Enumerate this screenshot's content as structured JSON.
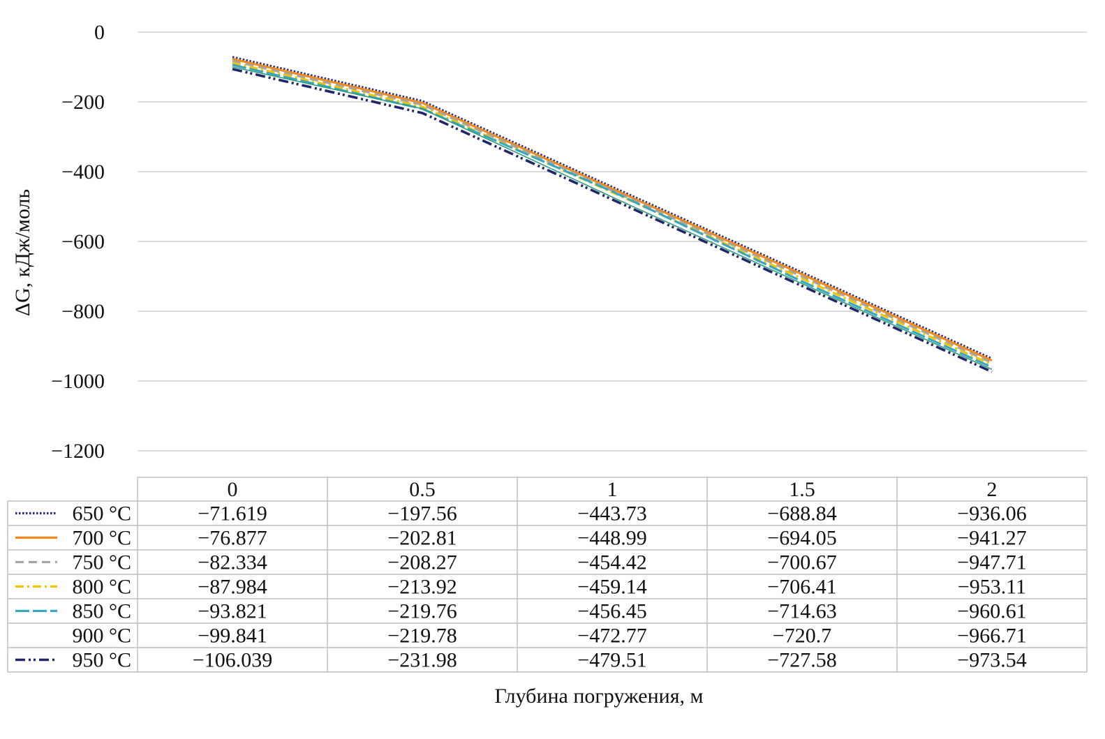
{
  "chart_data": {
    "type": "line",
    "title": "",
    "xlabel": "Глубина погружения, м",
    "ylabel": "ΔG, кДж/моль",
    "ylim": [
      -1200,
      0
    ],
    "yticks": [
      0,
      -200,
      -400,
      -600,
      -800,
      -1000,
      -1200
    ],
    "ytick_labels": [
      "0",
      "−200",
      "−400",
      "−600",
      "−800",
      "−1000",
      "−1200"
    ],
    "grid": true,
    "legend": "data-table-left",
    "categories": [
      "0",
      "0.5",
      "1",
      "1.5",
      "2"
    ],
    "series": [
      {
        "name": "650 °C",
        "color": "#2b2f7e",
        "dash": "dotted",
        "values": [
          -71.619,
          -197.56,
          -443.73,
          -688.84,
          -936.06
        ],
        "labels": [
          "−71.619",
          "−197.56",
          "−443.73",
          "−688.84",
          "−936.06"
        ]
      },
      {
        "name": "700 °C",
        "color": "#f28a1c",
        "dash": "solid",
        "values": [
          -76.877,
          -202.81,
          -448.99,
          -694.05,
          -941.27
        ],
        "labels": [
          "−76.877",
          "−202.81",
          "−448.99",
          "−694.05",
          "−941.27"
        ]
      },
      {
        "name": "750 °C",
        "color": "#a5a5a5",
        "dash": "dashed",
        "values": [
          -82.334,
          -208.27,
          -454.42,
          -700.67,
          -947.71
        ],
        "labels": [
          "−82.334",
          "−208.27",
          "−454.42",
          "−700.67",
          "−947.71"
        ]
      },
      {
        "name": "800 °C",
        "color": "#f5c400",
        "dash": "dashdot",
        "values": [
          -87.984,
          -213.92,
          -459.14,
          -706.41,
          -953.11
        ],
        "labels": [
          "−87.984",
          "−213.92",
          "−459.14",
          "−706.41",
          "−953.11"
        ]
      },
      {
        "name": "850 °C",
        "color": "#3aa7c0",
        "dash": "longdash",
        "values": [
          -93.821,
          -219.76,
          -456.45,
          -714.63,
          -960.61
        ],
        "labels": [
          "−93.821",
          "−219.76",
          "−456.45",
          "−714.63",
          "−960.61"
        ]
      },
      {
        "name": "900 °C",
        "color": "#2e9e7a",
        "dash": "solid-thin",
        "values": [
          -99.841,
          -219.78,
          -472.77,
          -720.7,
          -966.71
        ],
        "labels": [
          "−99.841",
          "−219.78",
          "−472.77",
          "−720.7",
          "−966.71"
        ]
      },
      {
        "name": "950 °C",
        "color": "#23256b",
        "dash": "dashdotdot",
        "values": [
          -106.039,
          -231.98,
          -479.51,
          -727.58,
          -973.54
        ],
        "labels": [
          "−106.039",
          "−231.98",
          "−479.51",
          "−727.58",
          "−973.54"
        ]
      }
    ]
  }
}
